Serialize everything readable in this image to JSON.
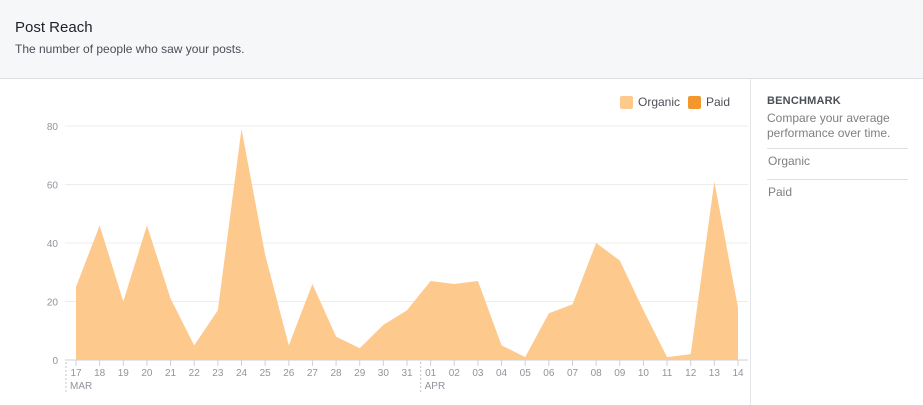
{
  "header": {
    "title": "Post Reach",
    "subtitle": "The number of people who saw your posts."
  },
  "legend": [
    {
      "label": "Organic",
      "color": "#fdc98c"
    },
    {
      "label": "Paid",
      "color": "#f3962e"
    }
  ],
  "benchmark": {
    "title": "BENCHMARK",
    "description": "Compare your average performance over time.",
    "items": [
      "Organic",
      "Paid"
    ]
  },
  "chart_data": {
    "type": "area",
    "x": [
      "17",
      "18",
      "19",
      "20",
      "21",
      "22",
      "23",
      "24",
      "25",
      "26",
      "27",
      "28",
      "29",
      "30",
      "31",
      "01",
      "02",
      "03",
      "04",
      "05",
      "06",
      "07",
      "08",
      "09",
      "10",
      "11",
      "12",
      "13",
      "14"
    ],
    "month_labels": [
      {
        "label": "MAR",
        "at": "17"
      },
      {
        "label": "APR",
        "at": "01"
      }
    ],
    "series": [
      {
        "name": "Organic",
        "color": "#fdc98c",
        "values": [
          25,
          46,
          20,
          46,
          21,
          5,
          17,
          79,
          36,
          5,
          26,
          8,
          4,
          12,
          17,
          27,
          26,
          27,
          5,
          1,
          16,
          19,
          40,
          34,
          17,
          1,
          2,
          61,
          18
        ]
      },
      {
        "name": "Paid",
        "color": "#f3962e",
        "values": [
          0,
          0,
          0,
          0,
          0,
          0,
          0,
          0,
          0,
          0,
          0,
          0,
          0,
          0,
          0,
          0,
          0,
          0,
          0,
          0,
          0,
          0,
          0,
          0,
          0,
          0,
          0,
          0,
          0
        ]
      }
    ],
    "yticks": [
      0,
      20,
      40,
      60,
      80
    ],
    "ylim": [
      0,
      80
    ],
    "grid": true,
    "legend_position": "top-right"
  }
}
